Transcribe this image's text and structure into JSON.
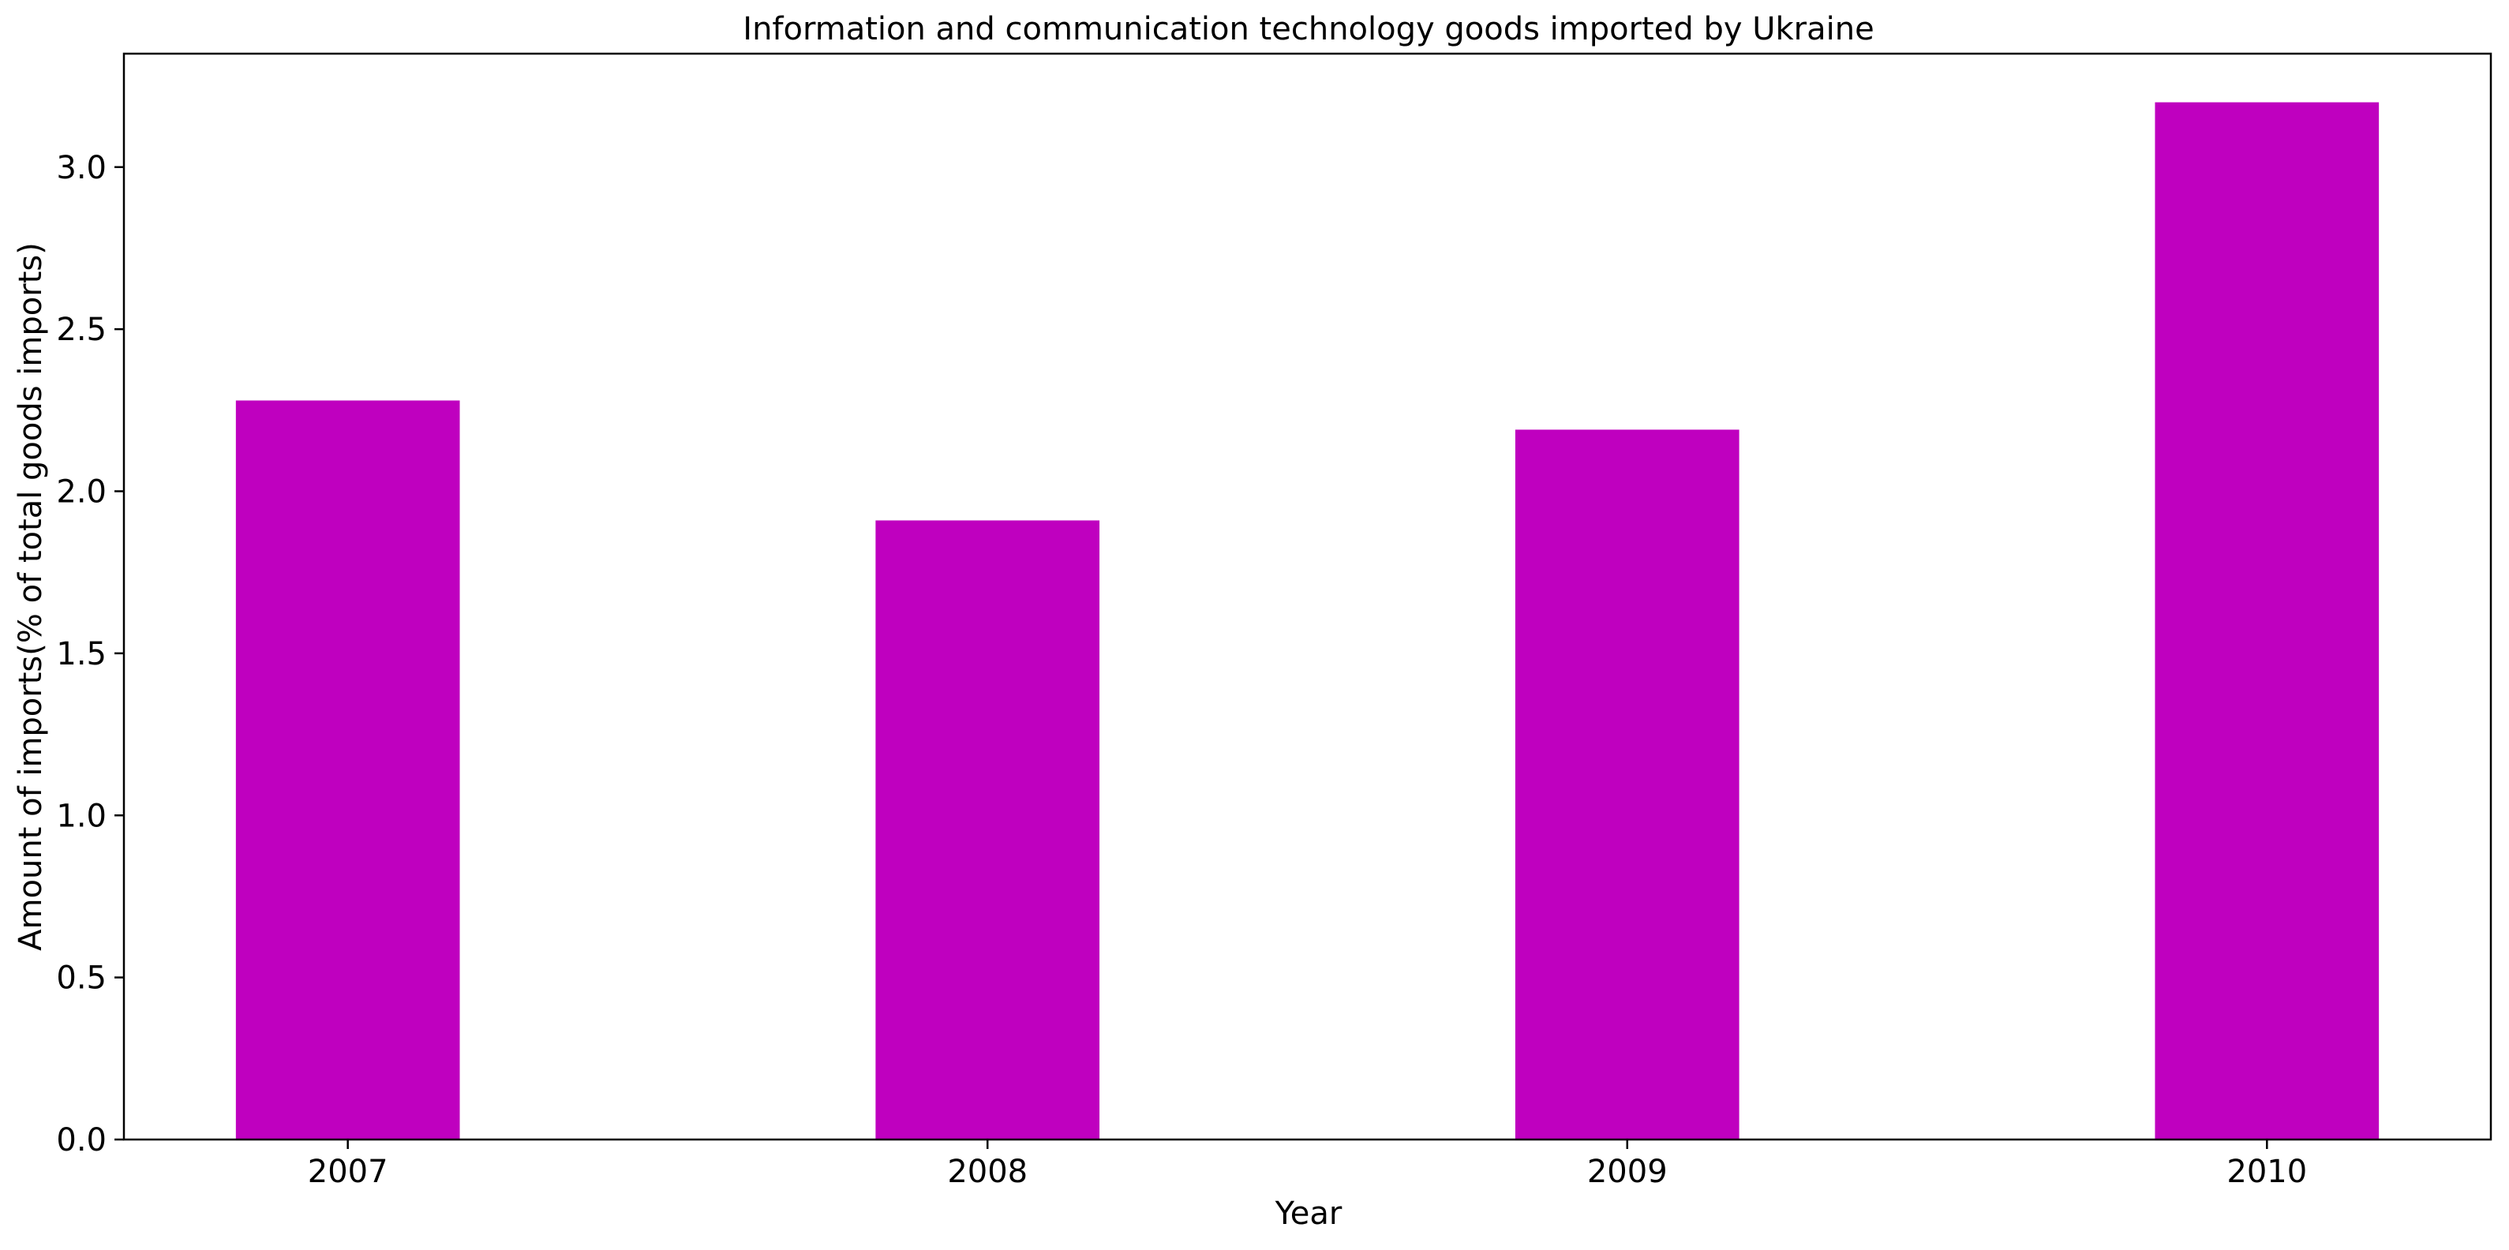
{
  "chart_data": {
    "type": "bar",
    "title": "Information and communication technology goods imported by Ukraine",
    "xlabel": "Year",
    "ylabel": "Amount of imports(% of total goods imports)",
    "categories": [
      "2007",
      "2008",
      "2009",
      "2010"
    ],
    "series": [
      {
        "values": [
          2.28,
          1.91,
          2.19,
          3.2
        ],
        "color": "#bf00bf"
      }
    ],
    "ylim": [
      0,
      3.35
    ],
    "yticks": [
      0.0,
      0.5,
      1.0,
      1.5,
      2.0,
      2.5,
      3.0
    ],
    "ytick_labels": [
      "0.0",
      "0.5",
      "1.0",
      "1.5",
      "2.0",
      "2.5",
      "3.0"
    ],
    "grid": false,
    "legend": "none"
  }
}
